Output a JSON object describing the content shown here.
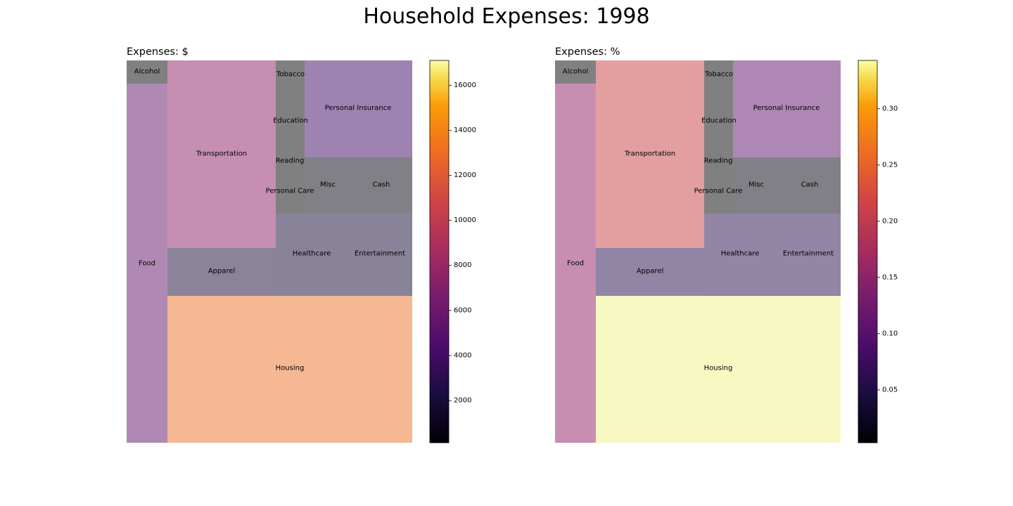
{
  "figure": {
    "title": "Household Expenses: 1998"
  },
  "chart_data": [
    {
      "type": "treemap",
      "title": "Expenses: $",
      "colormap": "inferno",
      "colorbar": {
        "range": [
          130,
          17100
        ],
        "ticks": [
          2000,
          4000,
          6000,
          8000,
          10000,
          12000,
          14000,
          16000
        ]
      },
      "cells": [
        {
          "label": "Alcohol",
          "value": 309,
          "color": "#808080"
        },
        {
          "label": "Food",
          "value": 4810,
          "color": "#b088b4"
        },
        {
          "label": "Transportation",
          "value": 6616,
          "color": "#c68eb2"
        },
        {
          "label": "Apparel",
          "value": 1674,
          "color": "#8a8399"
        },
        {
          "label": "Housing",
          "value": 12057,
          "color": "#f6b793"
        },
        {
          "label": "Tobacco",
          "value": 273,
          "color": "#808080"
        },
        {
          "label": "Education",
          "value": 571,
          "color": "#808080"
        },
        {
          "label": "Reading",
          "value": 159,
          "color": "#808080"
        },
        {
          "label": "Personal Care",
          "value": 408,
          "color": "#808080"
        },
        {
          "label": "Personal Insurance",
          "value": 3381,
          "color": "#9e82b2"
        },
        {
          "label": "Misc",
          "value": 860,
          "color": "#818086"
        },
        {
          "label": "Cash",
          "value": 1136,
          "color": "#818086"
        },
        {
          "label": "Healthcare",
          "value": 1903,
          "color": "#89839a"
        },
        {
          "label": "Entertainment",
          "value": 1746,
          "color": "#89839a"
        }
      ]
    },
    {
      "type": "treemap",
      "title": "Expenses: %",
      "colormap": "inferno",
      "colorbar": {
        "range": [
          0.003,
          0.343
        ],
        "ticks": [
          0.05,
          0.1,
          0.15,
          0.2,
          0.25,
          0.3
        ]
      },
      "cells": [
        {
          "label": "Alcohol",
          "value": 0.009,
          "color": "#808080"
        },
        {
          "label": "Food",
          "value": 0.137,
          "color": "#c88eb2"
        },
        {
          "label": "Transportation",
          "value": 0.188,
          "color": "#e39fa0"
        },
        {
          "label": "Apparel",
          "value": 0.048,
          "color": "#9184a5"
        },
        {
          "label": "Housing",
          "value": 0.343,
          "color": "#f8f8c2"
        },
        {
          "label": "Tobacco",
          "value": 0.008,
          "color": "#808080"
        },
        {
          "label": "Education",
          "value": 0.016,
          "color": "#808080"
        },
        {
          "label": "Reading",
          "value": 0.005,
          "color": "#808080"
        },
        {
          "label": "Personal Care",
          "value": 0.012,
          "color": "#808080"
        },
        {
          "label": "Personal Insurance",
          "value": 0.096,
          "color": "#af87b4"
        },
        {
          "label": "Misc",
          "value": 0.024,
          "color": "#818086"
        },
        {
          "label": "Cash",
          "value": 0.032,
          "color": "#818086"
        },
        {
          "label": "Healthcare",
          "value": 0.054,
          "color": "#9385a6"
        },
        {
          "label": "Entertainment",
          "value": 0.05,
          "color": "#9385a6"
        }
      ]
    }
  ]
}
